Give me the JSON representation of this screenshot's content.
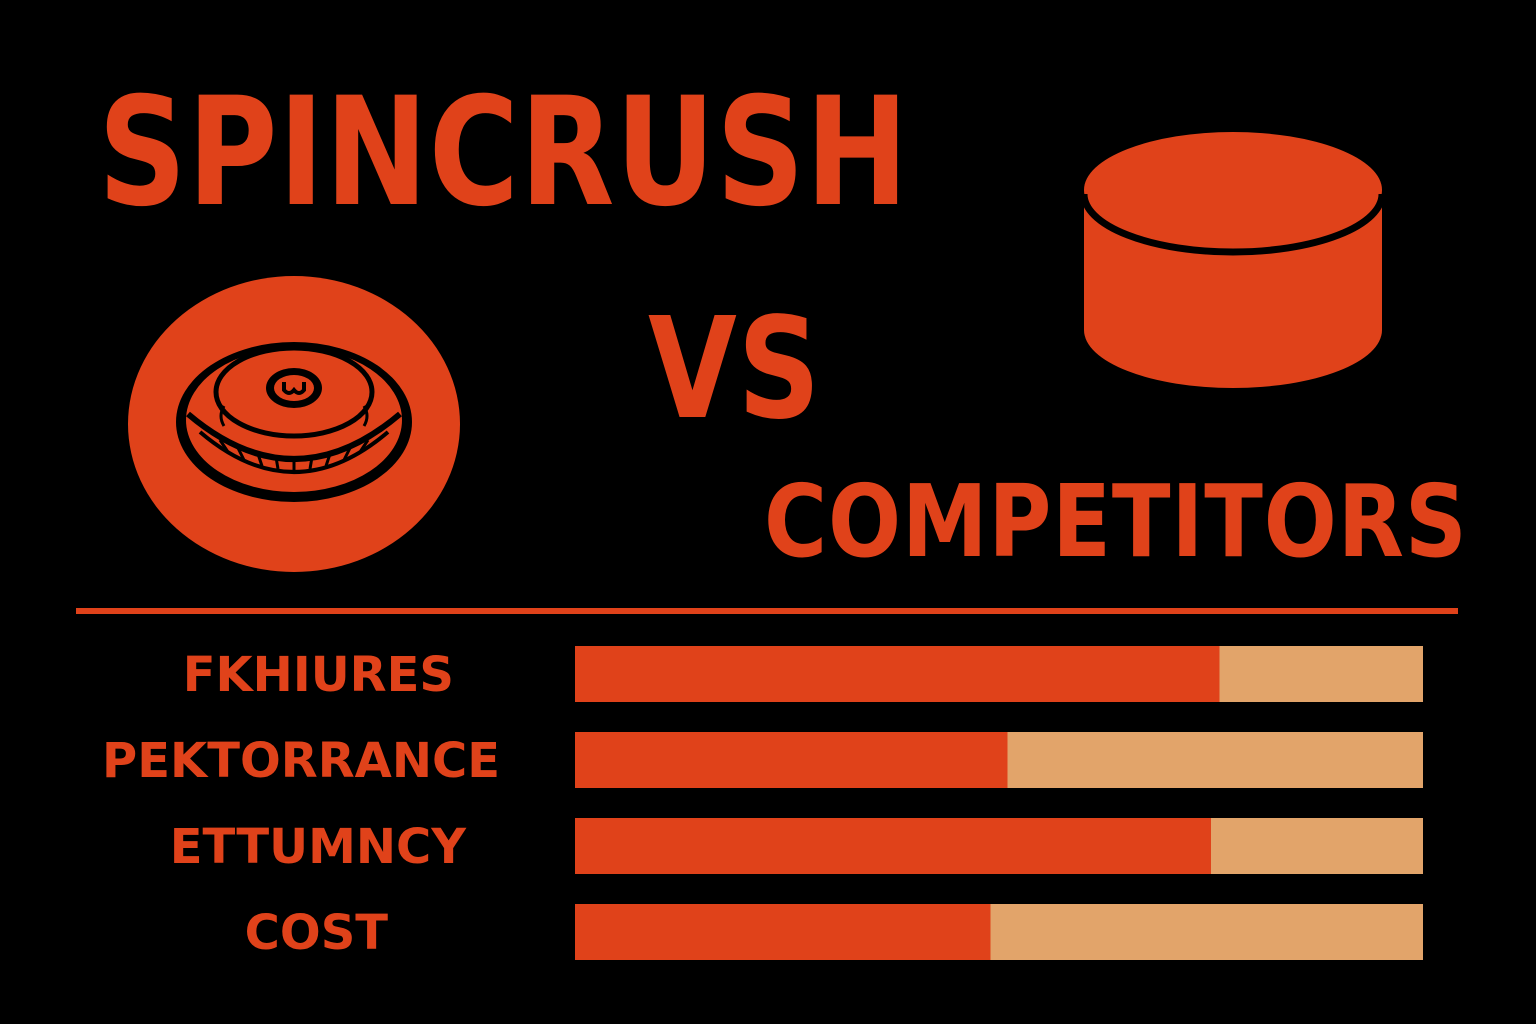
{
  "header": {
    "title": "SPINCRUSH",
    "vs": "VS",
    "competitors": "COMPETITORS"
  },
  "icons": {
    "left": "puck-icon",
    "right": "cylinder-icon"
  },
  "colors": {
    "background": "#000000",
    "primary": "#E0421A",
    "secondary": "#E2A46A"
  },
  "chart_data": {
    "type": "bar",
    "orientation": "horizontal",
    "stacked": true,
    "categories": [
      "FKHIURES",
      "PEKTORRANCE",
      "ETTUMNCY",
      "COST"
    ],
    "series": [
      {
        "values": [
          76,
          51,
          75,
          49
        ],
        "color": "#E0421A"
      },
      {
        "values": [
          24,
          49,
          25,
          51
        ],
        "color": "#E2A46A"
      }
    ],
    "xlim": [
      0,
      100
    ],
    "grid": false,
    "legend": "none"
  }
}
